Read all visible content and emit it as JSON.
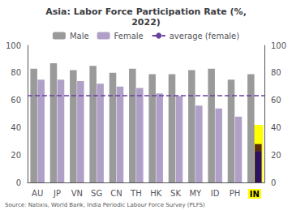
{
  "chart_data": {
    "type": "bar",
    "title": "Asia: Labor Force Participation Rate (%,\n2022)",
    "categories": [
      "AU",
      "JP",
      "VN",
      "SG",
      "CN",
      "TH",
      "HK",
      "SK",
      "MY",
      "ID",
      "PH",
      "IN"
    ],
    "series": [
      {
        "type": "highlight",
        "color": "#ffff00",
        "values": [
          null,
          null,
          null,
          null,
          null,
          null,
          null,
          null,
          null,
          null,
          null,
          42
        ]
      },
      {
        "name": "Male",
        "color": "#9a9a9a",
        "values": [
          83,
          87,
          82,
          85,
          80,
          83,
          79,
          79,
          82,
          83,
          75,
          79
        ]
      },
      {
        "name": "Female",
        "color": "#b0a0c8",
        "colors": [
          "#b0a0c8",
          "#b0a0c8",
          "#b0a0c8",
          "#b0a0c8",
          "#b0a0c8",
          "#b0a0c8",
          "#b0a0c8",
          "#b0a0c8",
          "#b0a0c8",
          "#b0a0c8",
          "#b0a0c8",
          "#2d1060"
        ],
        "values": [
          75,
          75,
          74,
          72,
          70,
          69,
          65,
          63,
          56,
          54,
          48,
          23
        ]
      },
      {
        "color": "#5a2d0c",
        "stacked": true,
        "values": [
          null,
          null,
          null,
          null,
          null,
          null,
          null,
          null,
          null,
          null,
          null,
          5
        ]
      },
      {
        "name": "average (female)",
        "type": "hline",
        "color": "#6a3fa0",
        "line_style": "dashed",
        "value": 63.5
      }
    ],
    "ylim": [
      0,
      100
    ],
    "yticks": [
      0,
      20,
      40,
      60,
      80,
      100
    ],
    "y2lim": [
      0,
      100
    ],
    "y2ticks": [
      0,
      20,
      40,
      60,
      80,
      100
    ],
    "grid": false,
    "legend": "upper center",
    "source": "Source: Natixis, World Bank, India Periodic Labour Force Survey (PLFS)"
  }
}
